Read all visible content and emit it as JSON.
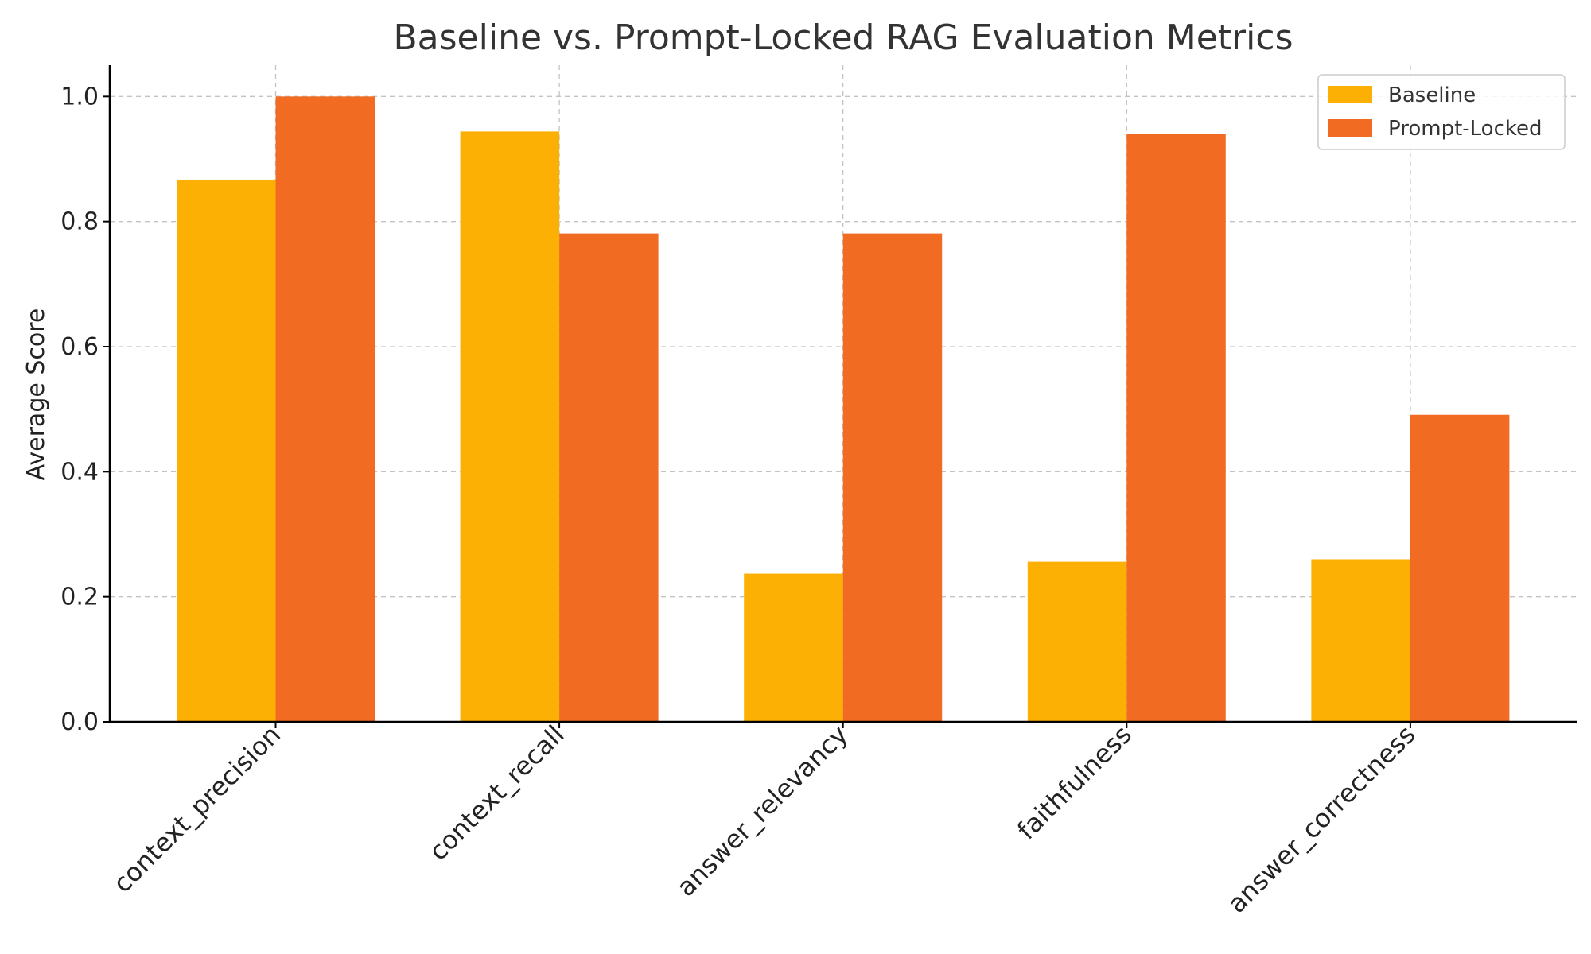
{
  "chart_data": {
    "type": "bar",
    "title": "Baseline vs. Prompt-Locked RAG Evaluation Metrics",
    "xlabel": "",
    "ylabel": "Average Score",
    "ylim": [
      0,
      1.05
    ],
    "yticks": [
      "0.0",
      "0.2",
      "0.4",
      "0.6",
      "0.8",
      "1.0"
    ],
    "grid": true,
    "legend_position": "top-right",
    "categories": [
      "context_precision",
      "context_recall",
      "answer_relevancy",
      "faithfulness",
      "answer_correctness"
    ],
    "series": [
      {
        "name": "Baseline",
        "color": "#FDB004",
        "values": [
          0.867,
          0.944,
          0.237,
          0.256,
          0.26
        ]
      },
      {
        "name": "Prompt-Locked",
        "color": "#F26B22",
        "values": [
          1.0,
          0.781,
          0.781,
          0.94,
          0.491
        ]
      }
    ]
  }
}
